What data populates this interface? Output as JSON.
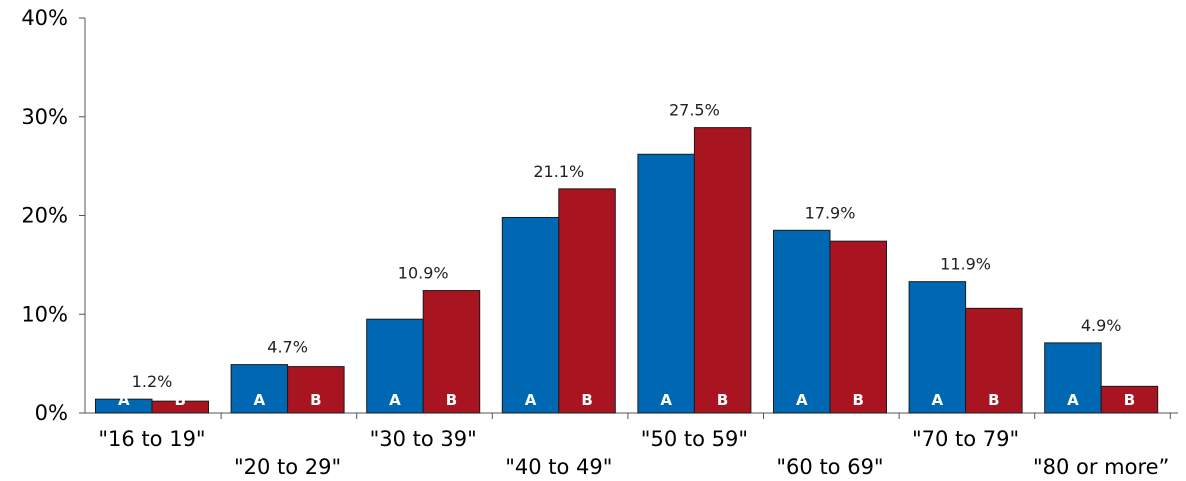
{
  "chart_data": {
    "type": "bar",
    "title": "",
    "xlabel": "",
    "ylabel": "",
    "ylim": [
      0,
      40
    ],
    "y_ticks": [
      "0%",
      "10%",
      "20%",
      "30%",
      "40%"
    ],
    "categories": [
      "\"16 to 19\"",
      "\"20 to 29\"",
      "\"30 to 39\"",
      "\"40 to 49\"",
      "\"50 to 59\"",
      "\"60 to 69\"",
      "\"70 to 79\"",
      "\"80 or more”"
    ],
    "series": [
      {
        "name": "A",
        "color": "#0068b3",
        "values": [
          1.4,
          4.9,
          9.5,
          19.8,
          26.2,
          18.5,
          13.3,
          7.1
        ]
      },
      {
        "name": "B",
        "color": "#a81521",
        "values": [
          1.2,
          4.7,
          12.4,
          22.7,
          28.9,
          17.4,
          10.6,
          2.7
        ]
      }
    ],
    "data_labels": [
      "1.2%",
      "4.7%",
      "10.9%",
      "21.1%",
      "27.5%",
      "17.9%",
      "11.9%",
      "4.9%"
    ],
    "grid": false,
    "legend": "none"
  }
}
